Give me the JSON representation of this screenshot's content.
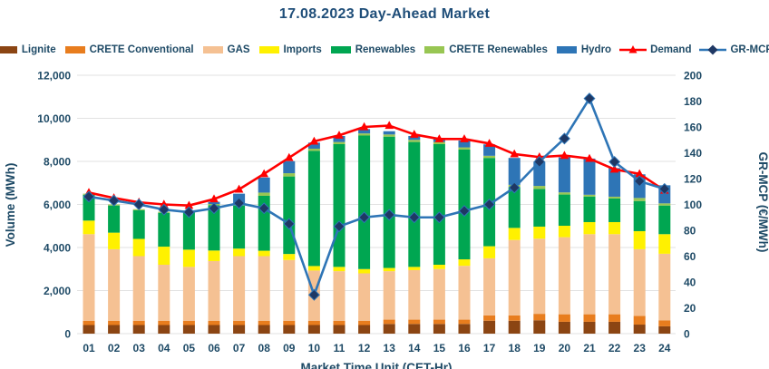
{
  "title": "17.08.2023  Day-Ahead Market",
  "chart_data": {
    "type": "bar",
    "stacked": true,
    "grid": true,
    "legend_position": "top",
    "title": "17.08.2023  Day-Ahead Market",
    "xlabel": "Market Time Unit (CET-Hr)",
    "categories": [
      "01",
      "02",
      "03",
      "04",
      "05",
      "06",
      "07",
      "08",
      "09",
      "10",
      "11",
      "12",
      "13",
      "14",
      "15",
      "16",
      "17",
      "18",
      "19",
      "20",
      "21",
      "22",
      "23",
      "24"
    ],
    "left_axis": {
      "label": "Volume (MWh)",
      "min": 0,
      "max": 12000,
      "step": 2000
    },
    "right_axis": {
      "label": "GR-MCP (€/MWh)",
      "min": 0,
      "max": 200,
      "step": 20
    },
    "series": [
      {
        "name": "Lignite",
        "type": "bar",
        "axis": "left",
        "color": "#8B4513",
        "values": [
          400,
          400,
          400,
          400,
          400,
          400,
          400,
          400,
          400,
          400,
          400,
          400,
          450,
          450,
          450,
          450,
          600,
          600,
          620,
          550,
          550,
          550,
          420,
          340
        ]
      },
      {
        "name": "CRETE Conventional",
        "type": "bar",
        "axis": "left",
        "color": "#E87D1E",
        "values": [
          200,
          200,
          200,
          200,
          200,
          200,
          200,
          200,
          200,
          200,
          200,
          200,
          200,
          200,
          200,
          200,
          250,
          250,
          300,
          350,
          350,
          350,
          400,
          280
        ]
      },
      {
        "name": "GAS",
        "type": "bar",
        "axis": "left",
        "color": "#F5C193",
        "values": [
          4020,
          3320,
          3000,
          2600,
          2500,
          2770,
          3000,
          3000,
          2820,
          2330,
          2300,
          2200,
          2250,
          2300,
          2350,
          2500,
          2650,
          3500,
          3490,
          3580,
          3720,
          3720,
          3100,
          3090
        ]
      },
      {
        "name": "Imports",
        "type": "bar",
        "axis": "left",
        "color": "#FFF100",
        "values": [
          630,
          770,
          800,
          840,
          800,
          490,
          350,
          250,
          280,
          210,
          200,
          200,
          150,
          150,
          200,
          300,
          560,
          560,
          560,
          530,
          560,
          560,
          840,
          910
        ]
      },
      {
        "name": "Renewables",
        "type": "bar",
        "axis": "left",
        "color": "#00A651",
        "values": [
          1200,
          1260,
          1330,
          1570,
          1770,
          2100,
          2000,
          2550,
          3600,
          5350,
          5700,
          6200,
          6100,
          5800,
          5600,
          5100,
          4100,
          1900,
          1750,
          1450,
          1190,
          1100,
          1400,
          1330
        ]
      },
      {
        "name": "CRETE Renewables",
        "type": "bar",
        "axis": "left",
        "color": "#98C653",
        "values": [
          50,
          50,
          50,
          50,
          50,
          60,
          100,
          150,
          150,
          100,
          100,
          100,
          100,
          100,
          100,
          100,
          100,
          100,
          140,
          100,
          80,
          80,
          140,
          100
        ]
      },
      {
        "name": "Hydro",
        "type": "bar",
        "axis": "left",
        "color": "#2E75B6",
        "values": [
          0,
          0,
          0,
          0,
          0,
          100,
          450,
          700,
          560,
          280,
          280,
          200,
          150,
          180,
          150,
          320,
          530,
          1250,
          1120,
          1630,
          1680,
          1330,
          1100,
          840
        ]
      },
      {
        "name": "Demand",
        "type": "line",
        "axis": "left",
        "color": "#FF0000",
        "marker": "triangle",
        "marker_color": "#FF0000",
        "values": [
          6550,
          6300,
          6100,
          6000,
          5950,
          6250,
          6700,
          7420,
          8170,
          8930,
          9210,
          9600,
          9660,
          9250,
          9040,
          9040,
          8830,
          8340,
          8200,
          8270,
          8130,
          7630,
          7420,
          6650
        ]
      },
      {
        "name": "GR-MCP",
        "type": "line",
        "axis": "right",
        "color": "#2E75B6",
        "marker": "diamond",
        "marker_color": "#1F3864",
        "values": [
          106,
          103,
          100,
          96,
          94,
          97,
          101,
          97,
          85,
          30,
          83,
          90,
          92,
          90,
          90,
          95,
          100,
          113,
          133,
          151,
          182,
          133,
          118,
          112
        ]
      }
    ]
  },
  "colors": {
    "title": "#1F4E79",
    "axis_text": "#1E4A66",
    "gridline": "#E2E2E2"
  }
}
